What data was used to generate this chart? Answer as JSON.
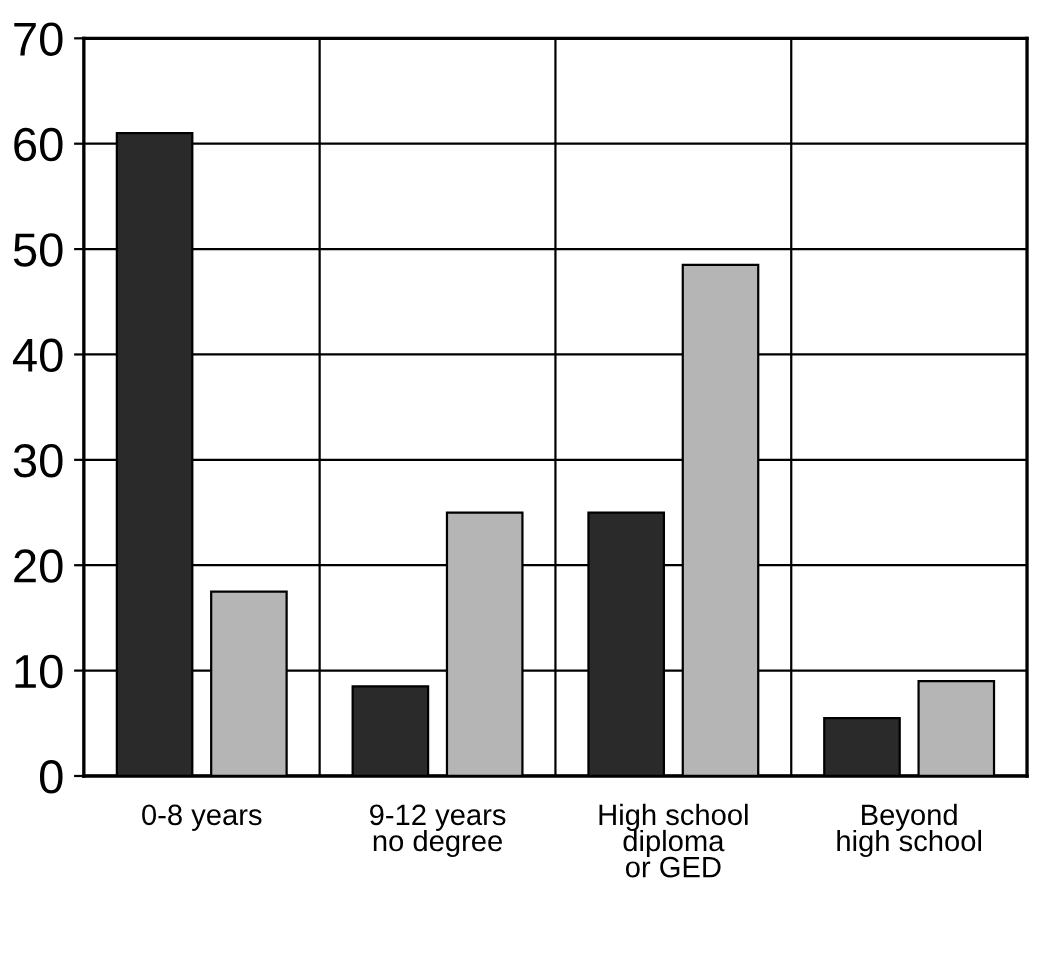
{
  "chart_data": {
    "type": "bar",
    "categories": [
      "0-8 years",
      "9-12 years\nno degree",
      "High school\ndiploma\nor GED",
      "Beyond\nhigh school"
    ],
    "series": [
      {
        "color": "#2a2a2a",
        "values": [
          61,
          8.5,
          25,
          5.5
        ]
      },
      {
        "color": "#b5b5b5",
        "values": [
          17.5,
          25,
          48.5,
          9
        ]
      }
    ],
    "ylim": [
      0,
      70
    ],
    "yticks": [
      0,
      10,
      20,
      30,
      40,
      50,
      60,
      70
    ],
    "grid": true
  }
}
